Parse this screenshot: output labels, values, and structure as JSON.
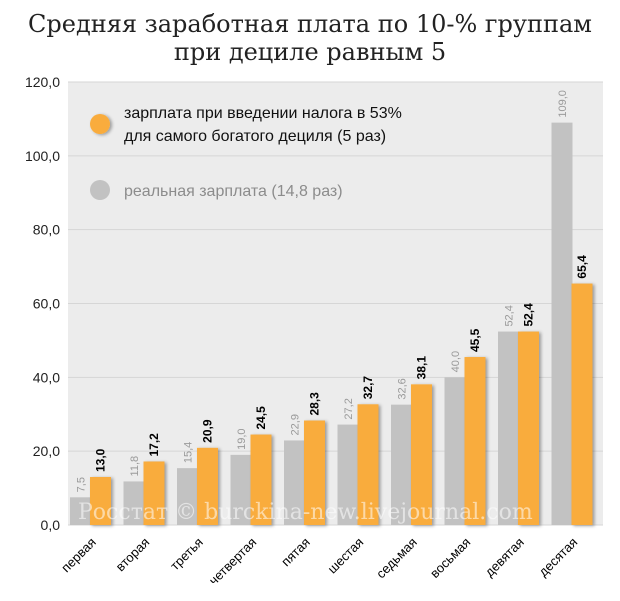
{
  "title": {
    "line1": "Средняя заработная плата по 10-% группам",
    "line2": "при дециле равным 5"
  },
  "watermark": "Росстат © burckina-new.livejournal.com",
  "colors": {
    "plot_bg": "#ececec",
    "gridline": "#d6d6d6",
    "series_gray": "#c2c2c2",
    "series_orange": "#f9ac3c",
    "legend_gray_text": "#8c8c8c",
    "legend_orange_text": "#111111"
  },
  "legend": [
    {
      "marker": "orange",
      "lines": [
        "зарплата при введении налога в 53%",
        "для самого богатого дециля (5 раз)"
      ]
    },
    {
      "marker": "gray",
      "lines": [
        "реальная зарплата (14,8 раз)"
      ]
    }
  ],
  "chart_data": {
    "type": "bar",
    "categories": [
      "первая",
      "вторая",
      "третья",
      "четвертая",
      "пятая",
      "шестая",
      "седьмая",
      "восьмая",
      "девятая",
      "десятая"
    ],
    "series": [
      {
        "name": "реальная зарплата (14,8 раз)",
        "color": "gray",
        "values": [
          7.5,
          11.8,
          15.4,
          19.0,
          22.9,
          27.2,
          32.6,
          40.0,
          52.4,
          109.0
        ],
        "labels": [
          "7,5",
          "11,8",
          "15,4",
          "19,0",
          "22,9",
          "27,2",
          "32,6",
          "40,0",
          "52,4",
          "109,0"
        ]
      },
      {
        "name": "зарплата при введении налога в 53% для самого богатого дециля (5 раз)",
        "color": "orange",
        "values": [
          13.0,
          17.2,
          20.9,
          24.5,
          28.3,
          32.7,
          38.1,
          45.5,
          52.4,
          65.4
        ],
        "labels": [
          "13,0",
          "17,2",
          "20,9",
          "24,5",
          "28,3",
          "32,7",
          "38,1",
          "45,5",
          "52,4",
          "65,4"
        ]
      }
    ],
    "ylim": [
      0,
      120
    ],
    "yticks": [
      0,
      20,
      40,
      60,
      80,
      100,
      120
    ],
    "ytick_labels": [
      "0,0",
      "20,0",
      "40,0",
      "60,0",
      "80,0",
      "100,0",
      "120,0"
    ],
    "grid": true,
    "legend_position": "top-left"
  }
}
